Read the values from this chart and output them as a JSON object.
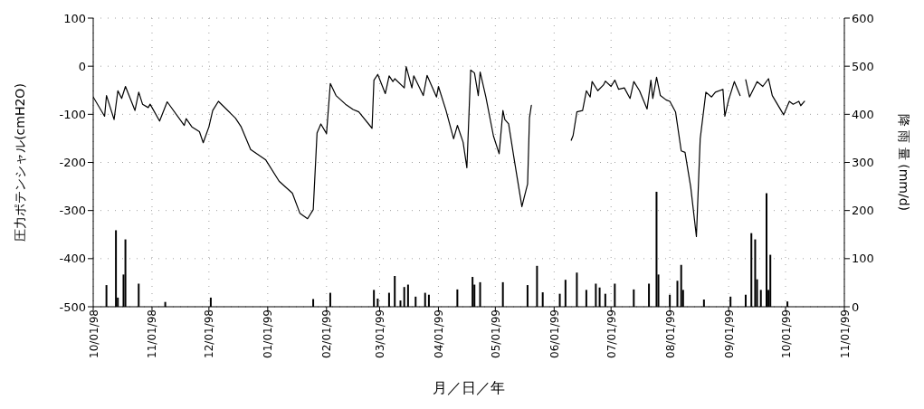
{
  "chart_data": {
    "type": "line",
    "xlabel": "月／日／年",
    "ylabel": "圧力ポテンシャル(cmH2O)",
    "y2label": "降 雨 量 (mm/d)",
    "xlim": [
      "1998-10-01",
      "1999-11-01"
    ],
    "xticks": [
      {
        "value": "1998-10-01",
        "label": "10/01/98"
      },
      {
        "value": "1998-11-01",
        "label": "11/01/98"
      },
      {
        "value": "1998-12-01",
        "label": "12/01/98"
      },
      {
        "value": "1999-01-01",
        "label": "01/01/99"
      },
      {
        "value": "1999-02-01",
        "label": "02/01/99"
      },
      {
        "value": "1999-03-01",
        "label": "03/01/99"
      },
      {
        "value": "1999-04-01",
        "label": "04/01/99"
      },
      {
        "value": "1999-05-01",
        "label": "05/01/99"
      },
      {
        "value": "1999-06-01",
        "label": "06/01/99"
      },
      {
        "value": "1999-07-01",
        "label": "07/01/99"
      },
      {
        "value": "1999-08-01",
        "label": "08/01/99"
      },
      {
        "value": "1999-09-01",
        "label": "09/01/99"
      },
      {
        "value": "1999-10-01",
        "label": "10/01/99"
      },
      {
        "value": "1999-11-01",
        "label": "11/01/99"
      }
    ],
    "ylim": [
      -500,
      100
    ],
    "yticks": [
      -500,
      -400,
      -300,
      -200,
      -100,
      0,
      100
    ],
    "y2lim": [
      0,
      600
    ],
    "y2ticks": [
      0,
      100,
      200,
      300,
      400,
      500,
      600
    ],
    "grid": true,
    "series": [
      {
        "type": "bar",
        "axis": "y2",
        "color": "#000000",
        "x": [
          "1998-10-08",
          "1998-10-13",
          "1998-10-14",
          "1998-10-17",
          "1998-10-18",
          "1998-10-25",
          "1998-11-08",
          "1998-12-02",
          "1999-01-25",
          "1999-02-03",
          "1999-02-26",
          "1999-02-28",
          "1999-03-06",
          "1999-03-09",
          "1999-03-12",
          "1999-03-14",
          "1999-03-16",
          "1999-03-20",
          "1999-03-25",
          "1999-03-27",
          "1999-04-11",
          "1999-04-19",
          "1999-04-20",
          "1999-04-23",
          "1999-05-05",
          "1999-05-18",
          "1999-05-23",
          "1999-05-26",
          "1999-06-04",
          "1999-06-07",
          "1999-06-13",
          "1999-06-18",
          "1999-06-23",
          "1999-06-25",
          "1999-06-28",
          "1999-07-03",
          "1999-07-13",
          "1999-07-21",
          "1999-07-25",
          "1999-07-26",
          "1999-08-01",
          "1999-08-05",
          "1999-08-07",
          "1999-08-08",
          "1999-08-19",
          "1999-09-02",
          "1999-09-10",
          "1999-09-13",
          "1999-09-15",
          "1999-09-16",
          "1999-09-18",
          "1999-09-21",
          "1999-09-22",
          "1999-09-23",
          "1999-10-02"
        ],
        "values": [
          45,
          159,
          19,
          67,
          140,
          48,
          10,
          19,
          16,
          29,
          35,
          17,
          29,
          64,
          13,
          41,
          46,
          21,
          29,
          25,
          36,
          62,
          46,
          51,
          51,
          45,
          85,
          30,
          27,
          56,
          71,
          35,
          48,
          40,
          27,
          48,
          36,
          48,
          239,
          67,
          25,
          54,
          87,
          35,
          15,
          21,
          25,
          153,
          140,
          57,
          35,
          236,
          35,
          108,
          11
        ]
      },
      {
        "axis": "y",
        "color": "#000000",
        "x": [
          "1998-10-01",
          "1998-10-07",
          "1998-10-08",
          "1998-10-12",
          "1998-10-14",
          "1998-10-16",
          "1998-10-18",
          "1998-10-23",
          "1998-10-25",
          "1998-10-27",
          "1998-10-30",
          "1998-10-31",
          "1998-11-05",
          "1998-11-09",
          "1998-11-18",
          "1998-11-19",
          "1998-11-22",
          "1998-11-26",
          "1998-11-28",
          "1998-12-01",
          "1998-12-03",
          "1998-12-06",
          "1998-12-15",
          "1998-12-18",
          "1998-12-23",
          "1998-12-31",
          "1999-01-07",
          "1999-01-14",
          "1999-01-18",
          "1999-01-22",
          "1999-01-25",
          "1999-01-27",
          "1999-01-29",
          "1999-02-01",
          "1999-02-03",
          "1999-02-06",
          "1999-02-11",
          "1999-02-15",
          "1999-02-18",
          "1999-02-25",
          "1999-02-26",
          "1999-02-28",
          "1999-03-04",
          "1999-03-06",
          "1999-03-08",
          "1999-03-09",
          "1999-03-14",
          "1999-03-15",
          "1999-03-18",
          "1999-03-19",
          "1999-03-24",
          "1999-03-26",
          "1999-03-31",
          "1999-04-01",
          "1999-04-05",
          "1999-04-09",
          "1999-04-11",
          "1999-04-14",
          "1999-04-16",
          "1999-04-18",
          "1999-04-20",
          "1999-04-22",
          "1999-04-23",
          "1999-04-26",
          "1999-04-30",
          "1999-05-03",
          "1999-05-05",
          "1999-05-06",
          "1999-05-08",
          "1999-05-11",
          "1999-05-15",
          "1999-05-16",
          "1999-05-18",
          "1999-05-19",
          "1999-05-20",
          "1999-05-31",
          "1999-06-10",
          "1999-06-11",
          "1999-06-13",
          "1999-06-16",
          "1999-06-18",
          "1999-06-20",
          "1999-06-21",
          "1999-06-24",
          "1999-06-27",
          "1999-06-28",
          "1999-07-01",
          "1999-07-03",
          "1999-07-05",
          "1999-07-08",
          "1999-07-11",
          "1999-07-13",
          "1999-07-16",
          "1999-07-20",
          "1999-07-22",
          "1999-07-23",
          "1999-07-25",
          "1999-07-27",
          "1999-07-30",
          "1999-08-01",
          "1999-08-04",
          "1999-08-07",
          "1999-08-09",
          "1999-08-12",
          "1999-08-15",
          "1999-08-17",
          "1999-08-20",
          "1999-08-23",
          "1999-08-25",
          "1999-08-29",
          "1999-08-30",
          "1999-09-01",
          "1999-09-04",
          "1999-09-07",
          "1999-09-08",
          "1999-09-10",
          "1999-09-12",
          "1999-09-16",
          "1999-09-19",
          "1999-09-22",
          "1999-09-24",
          "1999-09-30",
          "1999-10-03",
          "1999-10-05",
          "1999-10-08",
          "1999-10-09",
          "1999-10-11"
        ],
        "values": [
          -64,
          -104,
          -61,
          -111,
          -51,
          -67,
          -42,
          -92,
          -54,
          -79,
          -86,
          -79,
          -114,
          -74,
          -123,
          -109,
          -126,
          -136,
          -159,
          -126,
          -92,
          -73,
          -108,
          -126,
          -173,
          -195,
          -239,
          -264,
          -306,
          -317,
          -298,
          -139,
          -120,
          -140,
          -36,
          -61,
          -79,
          -90,
          -95,
          -129,
          -29,
          -17,
          -57,
          -20,
          -32,
          -26,
          -45,
          -1,
          -45,
          -20,
          -61,
          -19,
          -64,
          -42,
          -92,
          -151,
          -123,
          -158,
          -211,
          -8,
          -14,
          -61,
          -12,
          -64,
          -145,
          -182,
          -92,
          -111,
          -120,
          -195,
          -292,
          -276,
          -245,
          -107,
          -81,
          null,
          -154,
          -144,
          -95,
          -92,
          -51,
          -64,
          -32,
          -51,
          -39,
          -31,
          -42,
          -29,
          -48,
          -45,
          -67,
          -32,
          -51,
          -89,
          -29,
          -67,
          -23,
          -61,
          -70,
          -73,
          -95,
          -176,
          -179,
          -251,
          -354,
          -151,
          -54,
          -64,
          -54,
          -48,
          -104,
          -70,
          -32,
          -61,
          null,
          -28,
          -64,
          -32,
          -42,
          -26,
          -61,
          -101,
          -73,
          -79,
          -73,
          -82,
          -73
        ]
      }
    ]
  }
}
